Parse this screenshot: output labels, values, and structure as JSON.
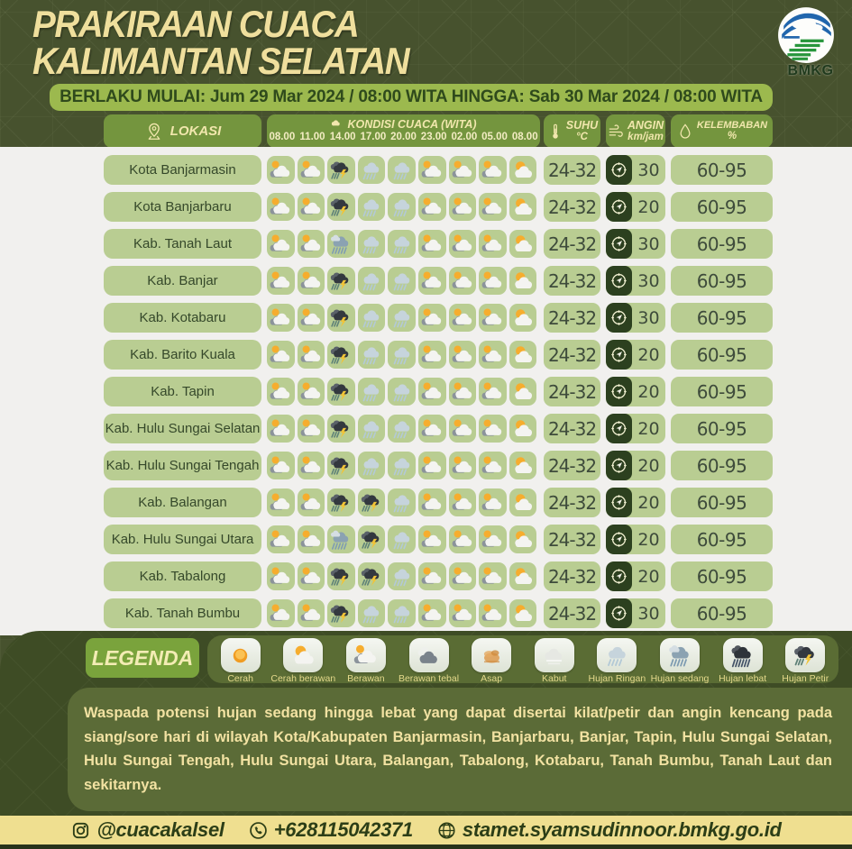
{
  "title": {
    "line1": "PRAKIRAAN CUACA",
    "line2": "KALIMANTAN SELATAN"
  },
  "logo": {
    "label": "BMKG"
  },
  "validity": "BERLAKU MULAI: Jum 29 Mar 2024 / 08:00 WITA HINGGA: Sab 30 Mar 2024 / 08:00 WITA",
  "table": {
    "headers": {
      "location": "LOKASI",
      "condition": "KONDISI CUACA (WITA)",
      "temp": {
        "label": "SUHU",
        "unit": "°C"
      },
      "wind": {
        "label": "ANGIN",
        "unit": "km/jam"
      },
      "humidity": {
        "label": "KELEMBABAN",
        "unit": "%"
      }
    },
    "times": [
      "08.00",
      "11.00",
      "14.00",
      "17.00",
      "20.00",
      "23.00",
      "02.00",
      "05.00",
      "08.00"
    ],
    "rows": [
      {
        "name": "Kota Banjarmasin",
        "conditions": [
          "berawan",
          "berawan",
          "hujan-petir",
          "hujan-ringan",
          "hujan-ringan",
          "berawan",
          "berawan",
          "berawan",
          "cerah-berawan"
        ],
        "temp": "24-32",
        "wind": "30",
        "humidity": "60-95"
      },
      {
        "name": "Kota Banjarbaru",
        "conditions": [
          "berawan",
          "berawan",
          "hujan-petir",
          "hujan-ringan",
          "hujan-ringan",
          "berawan",
          "berawan",
          "berawan",
          "cerah-berawan"
        ],
        "temp": "24-32",
        "wind": "20",
        "humidity": "60-95"
      },
      {
        "name": "Kab. Tanah Laut",
        "conditions": [
          "berawan",
          "berawan",
          "hujan-sedang",
          "hujan-ringan",
          "hujan-ringan",
          "berawan",
          "berawan",
          "berawan",
          "cerah-berawan"
        ],
        "temp": "24-32",
        "wind": "30",
        "humidity": "60-95"
      },
      {
        "name": "Kab. Banjar",
        "conditions": [
          "berawan",
          "berawan",
          "hujan-petir",
          "hujan-ringan",
          "hujan-ringan",
          "berawan",
          "berawan",
          "berawan",
          "cerah-berawan"
        ],
        "temp": "24-32",
        "wind": "30",
        "humidity": "60-95"
      },
      {
        "name": "Kab. Kotabaru",
        "conditions": [
          "berawan",
          "berawan",
          "hujan-petir",
          "hujan-ringan",
          "hujan-ringan",
          "berawan",
          "berawan",
          "berawan",
          "cerah-berawan"
        ],
        "temp": "24-32",
        "wind": "30",
        "humidity": "60-95"
      },
      {
        "name": "Kab. Barito Kuala",
        "conditions": [
          "berawan",
          "berawan",
          "hujan-petir",
          "hujan-ringan",
          "hujan-ringan",
          "berawan",
          "berawan",
          "berawan",
          "cerah-berawan"
        ],
        "temp": "24-32",
        "wind": "20",
        "humidity": "60-95"
      },
      {
        "name": "Kab. Tapin",
        "conditions": [
          "berawan",
          "berawan",
          "hujan-petir",
          "hujan-ringan",
          "hujan-ringan",
          "berawan",
          "berawan",
          "berawan",
          "cerah-berawan"
        ],
        "temp": "24-32",
        "wind": "20",
        "humidity": "60-95"
      },
      {
        "name": "Kab. Hulu Sungai Selatan",
        "conditions": [
          "berawan",
          "berawan",
          "hujan-petir",
          "hujan-ringan",
          "hujan-ringan",
          "berawan",
          "berawan",
          "berawan",
          "cerah-berawan"
        ],
        "temp": "24-32",
        "wind": "20",
        "humidity": "60-95"
      },
      {
        "name": "Kab. Hulu Sungai Tengah",
        "conditions": [
          "berawan",
          "berawan",
          "hujan-petir",
          "hujan-ringan",
          "hujan-ringan",
          "berawan",
          "berawan",
          "berawan",
          "cerah-berawan"
        ],
        "temp": "24-32",
        "wind": "20",
        "humidity": "60-95"
      },
      {
        "name": "Kab. Balangan",
        "conditions": [
          "berawan",
          "berawan",
          "hujan-petir",
          "hujan-petir",
          "hujan-ringan",
          "berawan",
          "berawan",
          "berawan",
          "cerah-berawan"
        ],
        "temp": "24-32",
        "wind": "20",
        "humidity": "60-95"
      },
      {
        "name": "Kab. Hulu Sungai Utara",
        "conditions": [
          "berawan",
          "berawan",
          "hujan-sedang",
          "hujan-petir",
          "hujan-ringan",
          "berawan",
          "berawan",
          "berawan",
          "cerah-berawan"
        ],
        "temp": "24-32",
        "wind": "20",
        "humidity": "60-95"
      },
      {
        "name": "Kab. Tabalong",
        "conditions": [
          "berawan",
          "berawan",
          "hujan-petir",
          "hujan-petir",
          "hujan-ringan",
          "berawan",
          "berawan",
          "berawan",
          "cerah-berawan"
        ],
        "temp": "24-32",
        "wind": "20",
        "humidity": "60-95"
      },
      {
        "name": "Kab. Tanah Bumbu",
        "conditions": [
          "berawan",
          "berawan",
          "hujan-petir",
          "hujan-ringan",
          "hujan-ringan",
          "berawan",
          "berawan",
          "berawan",
          "cerah-berawan"
        ],
        "temp": "24-32",
        "wind": "30",
        "humidity": "60-95"
      }
    ]
  },
  "legend": {
    "title": "LEGENDA",
    "items": [
      {
        "label": "Cerah",
        "icon": "cerah"
      },
      {
        "label": "Cerah berawan",
        "icon": "cerah-berawan"
      },
      {
        "label": "Berawan",
        "icon": "berawan"
      },
      {
        "label": "Berawan tebal",
        "icon": "berawan-tebal"
      },
      {
        "label": "Asap",
        "icon": "asap"
      },
      {
        "label": "Kabut",
        "icon": "kabut"
      },
      {
        "label": "Hujan Ringan",
        "icon": "hujan-ringan"
      },
      {
        "label": "Hujan sedang",
        "icon": "hujan-sedang"
      },
      {
        "label": "Hujan lebat",
        "icon": "hujan-lebat"
      },
      {
        "label": "Hujan Petir",
        "icon": "hujan-petir"
      }
    ]
  },
  "warning": "Waspada potensi hujan sedang hingga lebat yang dapat disertai kilat/petir dan angin kencang pada siang/sore hari di wilayah Kota/Kabupaten Banjarmasin, Banjarbaru, Banjar, Tapin, Hulu Sungai Selatan, Hulu Sungai Tengah, Hulu Sungai Utara, Balangan, Tabalong, Kotabaru, Tanah Bumbu, Tanah Laut dan sekitarnya.",
  "footer": {
    "instagram": "@cuacakalsel",
    "phone": "+628115042371",
    "website": "stamet.syamsudinnoor.bmkg.go.id"
  },
  "colors": {
    "page_bg": "#47522e",
    "panel_bg": "#3e4c25",
    "table_bg": "#f1f0ee",
    "cell_green": "#b9cd92",
    "header_green": "#74953e",
    "validity_green": "#9cb94e",
    "cream": "#efdf9d",
    "footer_yellow": "#efdf90",
    "compass_box": "#2c401f"
  }
}
